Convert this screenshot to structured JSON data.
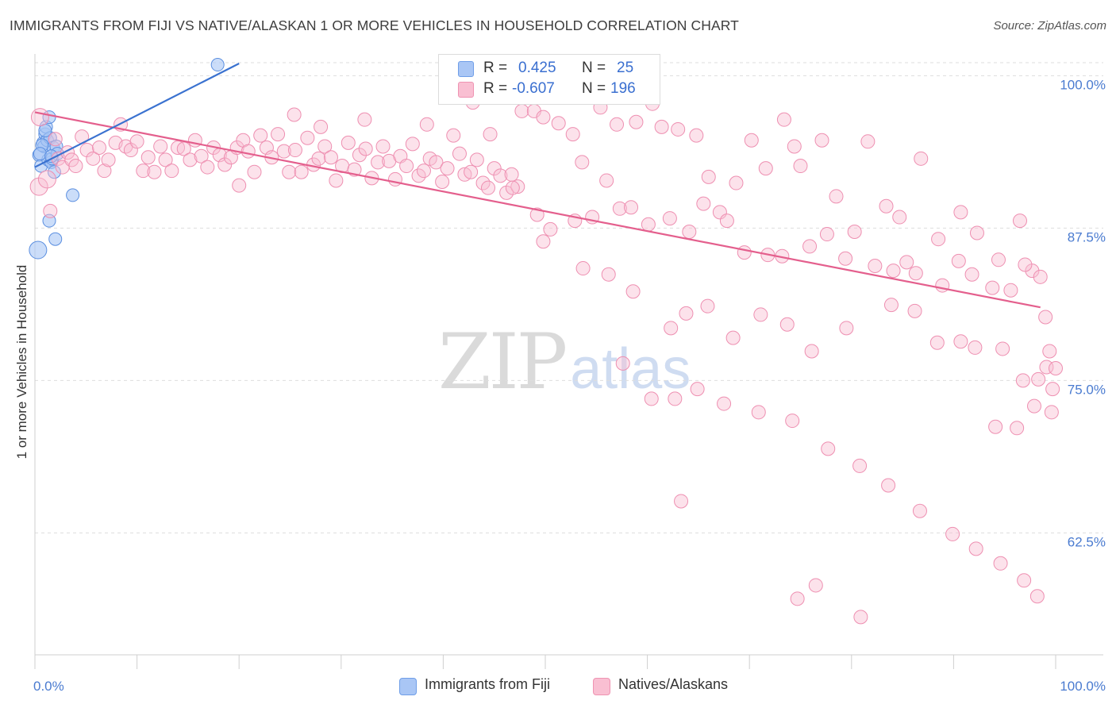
{
  "title": "IMMIGRANTS FROM FIJI VS NATIVE/ALASKAN 1 OR MORE VEHICLES IN HOUSEHOLD CORRELATION CHART",
  "source": "Source: ZipAtlas.com",
  "watermark": {
    "zip": "ZIP",
    "atlas": "atlas"
  },
  "legend": {
    "r_label": "R =",
    "n_label": "N =",
    "rows": [
      {
        "r": "0.425",
        "n": "25",
        "color": "#a9c6f5"
      },
      {
        "r": "-0.607",
        "n": "196",
        "color": "#f9bfd2"
      }
    ]
  },
  "bottom_legend": [
    {
      "label": "Immigrants from Fiji",
      "color": "#a9c6f5"
    },
    {
      "label": "Natives/Alaskans",
      "color": "#f9bfd2"
    }
  ],
  "chart_data": {
    "type": "scatter",
    "title": "IMMIGRANTS FROM FIJI VS NATIVE/ALASKAN 1 OR MORE VEHICLES IN HOUSEHOLD CORRELATION CHART",
    "xlabel": "",
    "ylabel": "1 or more Vehicles in Household",
    "xlim": [
      0,
      100
    ],
    "ylim": [
      51.5,
      102.5
    ],
    "x_tick_labels": [
      "0.0%",
      "100.0%"
    ],
    "y_ticks": [
      100.0,
      87.5,
      75.0,
      62.5
    ],
    "y_tick_labels": [
      "100.0%",
      "87.5%",
      "75.0%",
      "62.5%"
    ],
    "colors": {
      "fiji": "#3a72d0",
      "fiji_fill": "#a9c6f5",
      "native": "#e45f8d",
      "native_fill": "#f9bfd2",
      "tick": "#4a7bd0",
      "grid": "#dddddd"
    },
    "series": [
      {
        "name": "Immigrants from Fiji",
        "R": 0.425,
        "N": 25,
        "trend": [
          [
            0.0,
            92.5
          ],
          [
            20.0,
            101.0
          ]
        ],
        "points": [
          [
            0.3,
            85.7
          ],
          [
            0.4,
            93.5
          ],
          [
            0.6,
            92.6
          ],
          [
            0.8,
            94.5
          ],
          [
            0.9,
            94.2
          ],
          [
            1.0,
            95.2
          ],
          [
            1.1,
            95.8
          ],
          [
            1.2,
            94.7
          ],
          [
            1.3,
            93.1
          ],
          [
            1.4,
            96.6
          ],
          [
            1.5,
            94.9
          ],
          [
            1.6,
            92.9
          ],
          [
            1.7,
            93.2
          ],
          [
            1.8,
            94.1
          ],
          [
            1.9,
            92.1
          ],
          [
            2.0,
            86.6
          ],
          [
            2.1,
            94.2
          ],
          [
            2.2,
            93.6
          ],
          [
            1.4,
            88.1
          ],
          [
            3.7,
            90.2
          ],
          [
            0.7,
            94.3
          ],
          [
            1.0,
            95.5
          ],
          [
            0.5,
            93.6
          ],
          [
            17.9,
            100.9
          ],
          [
            1.6,
            93.4
          ]
        ]
      },
      {
        "name": "Natives/Alaskans",
        "R": -0.607,
        "N": 196,
        "trend": [
          [
            0.0,
            97.0
          ],
          [
            98.5,
            81.0
          ]
        ],
        "points": [
          [
            0.4,
            90.9
          ],
          [
            0.5,
            96.6
          ],
          [
            1.2,
            91.5
          ],
          [
            1.5,
            88.9
          ],
          [
            2.0,
            94.8
          ],
          [
            2.3,
            93.2
          ],
          [
            2.7,
            92.5
          ],
          [
            3.2,
            93.7
          ],
          [
            3.6,
            93.1
          ],
          [
            4.0,
            92.6
          ],
          [
            4.6,
            95.0
          ],
          [
            5.1,
            93.9
          ],
          [
            5.7,
            93.2
          ],
          [
            6.3,
            94.1
          ],
          [
            6.8,
            92.2
          ],
          [
            7.2,
            93.1
          ],
          [
            7.9,
            94.5
          ],
          [
            8.4,
            96.0
          ],
          [
            8.9,
            94.2
          ],
          [
            9.4,
            93.9
          ],
          [
            10.0,
            94.6
          ],
          [
            10.6,
            92.2
          ],
          [
            11.1,
            93.3
          ],
          [
            11.7,
            92.1
          ],
          [
            12.3,
            94.2
          ],
          [
            12.8,
            93.1
          ],
          [
            13.4,
            92.2
          ],
          [
            14.0,
            94.1
          ],
          [
            14.6,
            94.0
          ],
          [
            15.2,
            93.1
          ],
          [
            15.7,
            94.7
          ],
          [
            16.3,
            93.4
          ],
          [
            16.9,
            92.5
          ],
          [
            17.5,
            94.1
          ],
          [
            18.1,
            93.5
          ],
          [
            18.6,
            92.7
          ],
          [
            19.2,
            93.3
          ],
          [
            19.8,
            94.1
          ],
          [
            20.4,
            94.7
          ],
          [
            20.9,
            93.8
          ],
          [
            21.5,
            92.1
          ],
          [
            22.1,
            95.1
          ],
          [
            22.7,
            94.1
          ],
          [
            23.2,
            93.3
          ],
          [
            23.8,
            95.2
          ],
          [
            24.4,
            93.8
          ],
          [
            24.9,
            92.1
          ],
          [
            25.5,
            93.9
          ],
          [
            26.1,
            92.1
          ],
          [
            26.7,
            94.9
          ],
          [
            27.3,
            92.7
          ],
          [
            27.8,
            93.2
          ],
          [
            28.4,
            94.2
          ],
          [
            29.0,
            93.3
          ],
          [
            29.5,
            91.4
          ],
          [
            30.1,
            92.6
          ],
          [
            30.7,
            94.5
          ],
          [
            31.3,
            92.3
          ],
          [
            31.8,
            93.5
          ],
          [
            32.4,
            94.0
          ],
          [
            33.0,
            91.6
          ],
          [
            33.6,
            92.9
          ],
          [
            34.1,
            94.2
          ],
          [
            34.7,
            93.0
          ],
          [
            35.3,
            91.5
          ],
          [
            35.8,
            93.4
          ],
          [
            36.4,
            92.6
          ],
          [
            37.0,
            94.4
          ],
          [
            37.6,
            91.8
          ],
          [
            38.1,
            92.2
          ],
          [
            38.7,
            93.2
          ],
          [
            39.3,
            92.9
          ],
          [
            39.9,
            91.3
          ],
          [
            40.4,
            92.4
          ],
          [
            41.0,
            95.1
          ],
          [
            41.6,
            93.6
          ],
          [
            42.1,
            91.9
          ],
          [
            42.7,
            92.1
          ],
          [
            43.3,
            93.1
          ],
          [
            43.9,
            91.2
          ],
          [
            44.4,
            90.8
          ],
          [
            45.0,
            92.4
          ],
          [
            45.6,
            91.8
          ],
          [
            46.2,
            90.4
          ],
          [
            46.7,
            91.9
          ],
          [
            47.3,
            90.9
          ],
          [
            20.0,
            91.0
          ],
          [
            25.4,
            96.8
          ],
          [
            28.0,
            95.8
          ],
          [
            32.3,
            96.4
          ],
          [
            38.4,
            96.0
          ],
          [
            42.9,
            97.8
          ],
          [
            44.6,
            95.2
          ],
          [
            47.7,
            97.1
          ],
          [
            48.9,
            97.1
          ],
          [
            49.8,
            96.6
          ],
          [
            51.3,
            96.1
          ],
          [
            52.7,
            95.2
          ],
          [
            53.6,
            92.9
          ],
          [
            55.4,
            97.4
          ],
          [
            57.0,
            96.0
          ],
          [
            58.9,
            96.2
          ],
          [
            60.5,
            97.7
          ],
          [
            61.4,
            95.8
          ],
          [
            63.0,
            95.6
          ],
          [
            64.8,
            95.1
          ],
          [
            66.0,
            91.7
          ],
          [
            67.1,
            88.8
          ],
          [
            68.7,
            91.2
          ],
          [
            70.2,
            94.7
          ],
          [
            71.6,
            92.4
          ],
          [
            73.4,
            96.4
          ],
          [
            74.4,
            94.2
          ],
          [
            75.0,
            92.6
          ],
          [
            77.1,
            94.7
          ],
          [
            78.5,
            90.1
          ],
          [
            80.3,
            87.2
          ],
          [
            81.6,
            94.6
          ],
          [
            83.4,
            89.3
          ],
          [
            84.7,
            88.4
          ],
          [
            85.4,
            84.7
          ],
          [
            86.8,
            93.2
          ],
          [
            88.5,
            86.6
          ],
          [
            90.7,
            88.8
          ],
          [
            92.3,
            87.1
          ],
          [
            94.4,
            84.9
          ],
          [
            96.5,
            88.1
          ],
          [
            97.7,
            84.0
          ],
          [
            98.5,
            83.5
          ],
          [
            56.0,
            91.4
          ],
          [
            49.2,
            88.6
          ],
          [
            46.8,
            90.8
          ],
          [
            50.5,
            87.4
          ],
          [
            52.9,
            88.1
          ],
          [
            54.6,
            88.4
          ],
          [
            57.3,
            89.1
          ],
          [
            58.4,
            89.2
          ],
          [
            60.1,
            87.8
          ],
          [
            62.2,
            88.3
          ],
          [
            64.1,
            87.2
          ],
          [
            65.5,
            89.5
          ],
          [
            67.8,
            88.1
          ],
          [
            69.5,
            85.5
          ],
          [
            71.8,
            85.3
          ],
          [
            73.2,
            85.2
          ],
          [
            75.9,
            86.0
          ],
          [
            77.6,
            87.0
          ],
          [
            79.4,
            85.0
          ],
          [
            82.3,
            84.4
          ],
          [
            84.1,
            84.0
          ],
          [
            86.3,
            83.8
          ],
          [
            88.9,
            82.8
          ],
          [
            90.5,
            84.8
          ],
          [
            91.8,
            83.7
          ],
          [
            93.8,
            82.6
          ],
          [
            95.6,
            82.4
          ],
          [
            97.0,
            84.5
          ],
          [
            99.0,
            80.2
          ],
          [
            99.4,
            77.4
          ],
          [
            49.8,
            86.4
          ],
          [
            53.7,
            84.2
          ],
          [
            56.2,
            83.7
          ],
          [
            58.6,
            82.3
          ],
          [
            62.3,
            79.3
          ],
          [
            63.8,
            80.5
          ],
          [
            65.9,
            81.1
          ],
          [
            68.4,
            78.5
          ],
          [
            71.1,
            80.4
          ],
          [
            73.7,
            79.6
          ],
          [
            76.1,
            77.4
          ],
          [
            79.5,
            79.3
          ],
          [
            83.9,
            81.2
          ],
          [
            86.2,
            80.7
          ],
          [
            88.4,
            78.1
          ],
          [
            90.7,
            78.2
          ],
          [
            92.1,
            77.7
          ],
          [
            94.8,
            77.6
          ],
          [
            96.8,
            75.0
          ],
          [
            98.3,
            75.1
          ],
          [
            99.1,
            76.1
          ],
          [
            99.7,
            74.3
          ],
          [
            57.6,
            76.4
          ],
          [
            60.4,
            73.5
          ],
          [
            62.7,
            73.5
          ],
          [
            64.9,
            74.3
          ],
          [
            67.5,
            73.1
          ],
          [
            70.9,
            72.4
          ],
          [
            74.2,
            71.7
          ],
          [
            77.7,
            69.4
          ],
          [
            80.8,
            68.0
          ],
          [
            83.6,
            66.4
          ],
          [
            86.7,
            64.3
          ],
          [
            89.9,
            62.4
          ],
          [
            92.2,
            61.2
          ],
          [
            94.6,
            60.0
          ],
          [
            96.9,
            58.6
          ],
          [
            98.2,
            57.3
          ],
          [
            63.3,
            65.1
          ],
          [
            74.7,
            57.1
          ],
          [
            76.5,
            58.2
          ],
          [
            80.9,
            55.6
          ],
          [
            94.1,
            71.2
          ],
          [
            96.2,
            71.1
          ],
          [
            97.9,
            72.9
          ],
          [
            99.6,
            72.4
          ],
          [
            100.0,
            76.0
          ]
        ]
      }
    ]
  }
}
